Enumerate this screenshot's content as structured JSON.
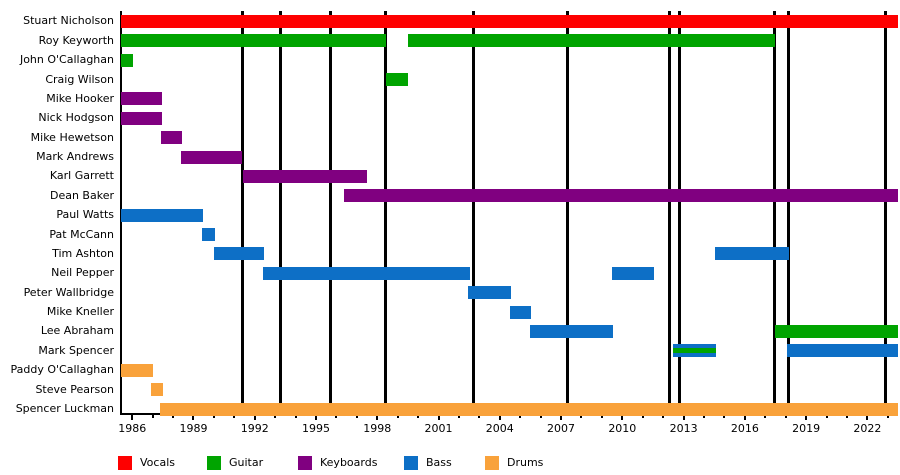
{
  "chart_data": {
    "type": "bar",
    "variant": "band-member-timeline-gantt",
    "title": "",
    "legend_position": "bottom",
    "grid": false,
    "x_axis": {
      "min": 1985.45,
      "max": 2023.5,
      "major_ticks": [
        1986,
        1989,
        1992,
        1995,
        1998,
        2001,
        2004,
        2007,
        2010,
        2013,
        2016,
        2019,
        2022
      ],
      "minor_tick_step": 1,
      "first_minor": 1986,
      "last_minor": 2023
    },
    "colors": {
      "vocals": "#fe0000",
      "guitar": "#00a400",
      "keyboards": "#800080",
      "bass": "#0d6fc6",
      "drums": "#f9a23b"
    },
    "legend": [
      {
        "label": "Vocals",
        "role": "vocals"
      },
      {
        "label": "Guitar",
        "role": "guitar"
      },
      {
        "label": "Keyboards",
        "role": "keyboards"
      },
      {
        "label": "Bass",
        "role": "bass"
      },
      {
        "label": "Drums",
        "role": "drums"
      }
    ],
    "rows": [
      {
        "name": "Stuart Nicholson",
        "segments": [
          {
            "role": "vocals",
            "start": 1985.45,
            "end": 2023.5
          }
        ]
      },
      {
        "name": "Roy Keyworth",
        "segments": [
          {
            "role": "guitar",
            "start": 1985.45,
            "end": 1998.41
          },
          {
            "role": "guitar",
            "start": 1999.5,
            "end": 2017.46
          }
        ]
      },
      {
        "name": "John O'Callaghan",
        "segments": [
          {
            "role": "guitar",
            "start": 1985.45,
            "end": 1986.05
          }
        ]
      },
      {
        "name": "Craig Wilson",
        "segments": [
          {
            "role": "guitar",
            "start": 1998.41,
            "end": 1999.5
          }
        ]
      },
      {
        "name": "Mike Hooker",
        "segments": [
          {
            "role": "keyboards",
            "start": 1985.45,
            "end": 1987.45
          }
        ]
      },
      {
        "name": "Nick Hodgson",
        "segments": [
          {
            "role": "keyboards",
            "start": 1985.45,
            "end": 1987.45
          }
        ]
      },
      {
        "name": "Mike Hewetson",
        "segments": [
          {
            "role": "keyboards",
            "start": 1987.4,
            "end": 1988.43
          }
        ]
      },
      {
        "name": "Mark Andrews",
        "segments": [
          {
            "role": "keyboards",
            "start": 1988.38,
            "end": 1991.4
          }
        ]
      },
      {
        "name": "Karl Garrett",
        "segments": [
          {
            "role": "keyboards",
            "start": 1991.4,
            "end": 1997.48
          }
        ]
      },
      {
        "name": "Dean Baker",
        "segments": [
          {
            "role": "keyboards",
            "start": 1996.39,
            "end": 2023.5
          }
        ]
      },
      {
        "name": "Paul Watts",
        "segments": [
          {
            "role": "bass",
            "start": 1985.45,
            "end": 1989.47
          }
        ]
      },
      {
        "name": "Pat McCann",
        "segments": [
          {
            "role": "bass",
            "start": 1989.44,
            "end": 1990.03
          }
        ]
      },
      {
        "name": "Tim Ashton",
        "segments": [
          {
            "role": "bass",
            "start": 1989.98,
            "end": 1992.46
          },
          {
            "role": "bass",
            "start": 2014.53,
            "end": 2018.15
          }
        ]
      },
      {
        "name": "Neil Pepper",
        "segments": [
          {
            "role": "bass",
            "start": 1992.42,
            "end": 2002.54
          },
          {
            "role": "bass",
            "start": 2009.47,
            "end": 2011.56
          }
        ]
      },
      {
        "name": "Peter Wallbridge",
        "segments": [
          {
            "role": "bass",
            "start": 2002.42,
            "end": 2004.54
          }
        ]
      },
      {
        "name": "Mike Kneller",
        "segments": [
          {
            "role": "bass",
            "start": 2004.49,
            "end": 2005.52
          }
        ]
      },
      {
        "name": "Lee Abraham",
        "segments": [
          {
            "role": "bass",
            "start": 2005.47,
            "end": 2009.55
          },
          {
            "role": "guitar",
            "start": 2017.5,
            "end": 2023.5
          }
        ]
      },
      {
        "name": "Mark Spencer",
        "segments": [
          {
            "role": "bass",
            "stripe_role": "guitar",
            "start": 2012.48,
            "end": 2014.61
          },
          {
            "role": "bass",
            "start": 2018.04,
            "end": 2023.5
          }
        ]
      },
      {
        "name": "Paddy O'Callaghan",
        "segments": [
          {
            "role": "drums",
            "start": 1985.45,
            "end": 1987.01
          }
        ]
      },
      {
        "name": "Steve Pearson",
        "segments": [
          {
            "role": "drums",
            "start": 1986.91,
            "end": 1987.5
          }
        ]
      },
      {
        "name": "Spencer Luckman",
        "segments": [
          {
            "role": "drums",
            "start": 1987.37,
            "end": 2023.5
          }
        ]
      }
    ],
    "event_lines": [
      1991.42,
      1993.28,
      1995.69,
      1998.41,
      2002.73,
      2007.33,
      2012.29,
      2012.78,
      2017.44,
      2018.16,
      2022.88
    ]
  }
}
